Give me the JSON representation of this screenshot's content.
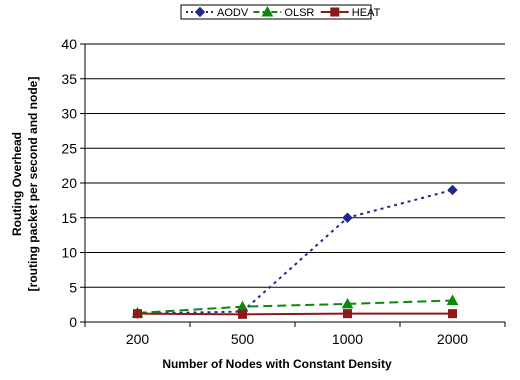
{
  "chart_data": {
    "type": "line",
    "title": "",
    "categories": [
      "200",
      "500",
      "1000",
      "2000"
    ],
    "xlabel": "Number of Nodes with Constant Density",
    "ylabel_lines": [
      "Routing Overhead",
      "[routing packet per second and node]"
    ],
    "ylim": [
      0,
      40
    ],
    "yticks": [
      0,
      5,
      10,
      15,
      20,
      25,
      30,
      35,
      40
    ],
    "grid": "horizontal",
    "legend_position": "top",
    "series": [
      {
        "name": "AODV",
        "values": [
          1.2,
          1.5,
          15.0,
          19.0
        ],
        "color": "#1F2A8C",
        "marker": "diamond",
        "dash": "3,4"
      },
      {
        "name": "OLSR",
        "values": [
          1.3,
          2.2,
          2.6,
          3.1
        ],
        "color": "#0A8A0A",
        "marker": "triangle",
        "dash": "9,5"
      },
      {
        "name": "HEAT",
        "values": [
          1.2,
          1.1,
          1.2,
          1.2
        ],
        "color": "#8B1A1A",
        "marker": "square",
        "dash": ""
      }
    ]
  }
}
